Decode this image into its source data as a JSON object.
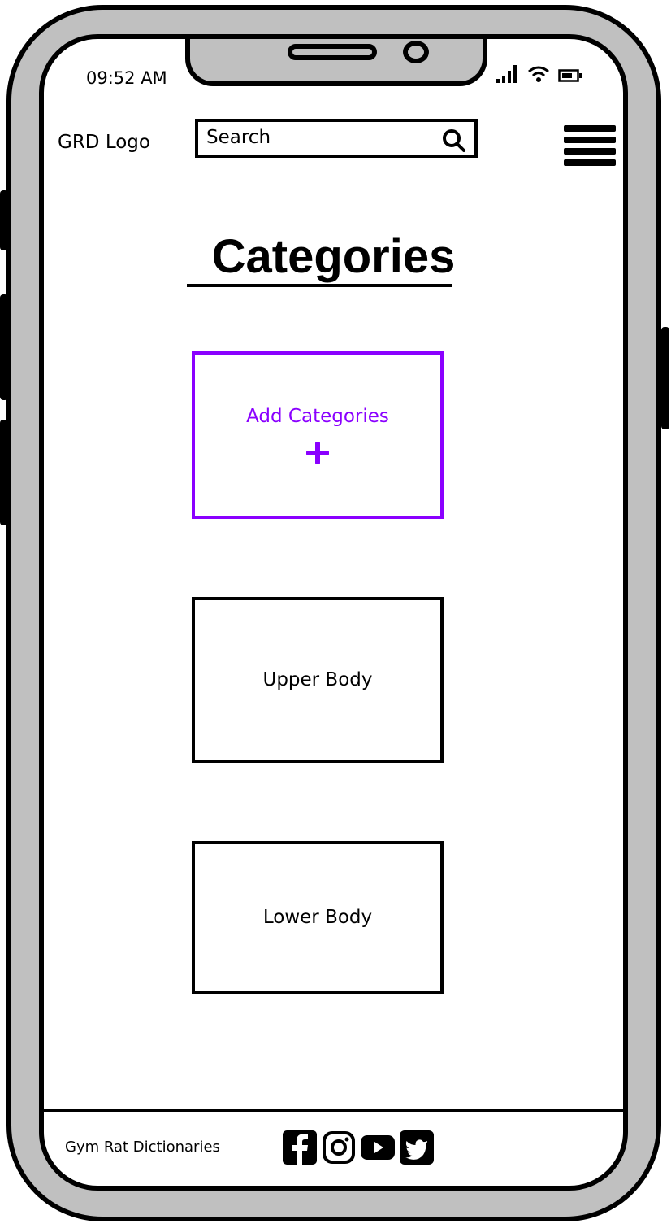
{
  "status_bar": {
    "time": "09:52 AM"
  },
  "header": {
    "logo": "GRD Logo",
    "search_text": "Search"
  },
  "page": {
    "title": "Categories"
  },
  "cards": {
    "add_label": "Add Categories",
    "upper_label": "Upper Body",
    "lower_label": "Lower Body"
  },
  "colors": {
    "accent": "#8a00ff",
    "frame": "#c0c0c0"
  },
  "footer": {
    "site_name": "Gym Rat Dictionaries",
    "social_icons": [
      "facebook-icon",
      "instagram-icon",
      "youtube-icon",
      "twitter-icon"
    ]
  }
}
